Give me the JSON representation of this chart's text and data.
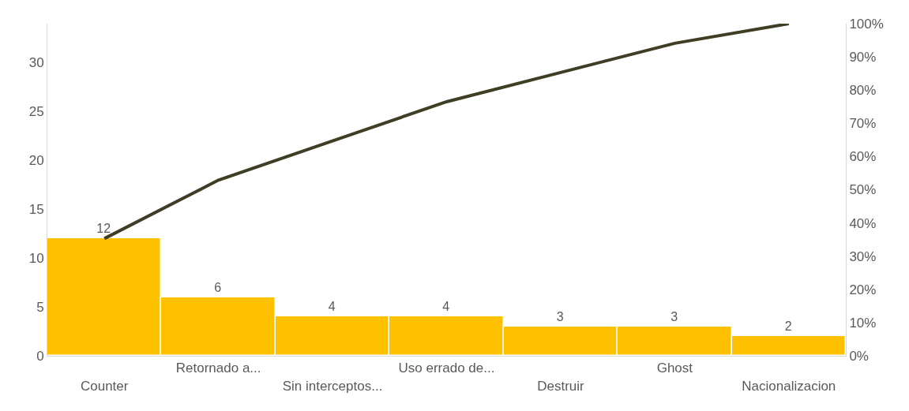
{
  "chart_data": {
    "type": "bar",
    "categories": [
      "Counter",
      "Retornado a...",
      "Sin interceptos...",
      "Uso errado de...",
      "Destruir",
      "Ghost",
      "Nacionalizacion"
    ],
    "series": [
      {
        "color": "#ffc000",
        "values": [
          12,
          6,
          4,
          4,
          3,
          3,
          2
        ],
        "value_labels": [
          "12",
          "6",
          "4",
          "4",
          "3",
          "3",
          "2"
        ]
      },
      {
        "type": "line",
        "axis": "y2",
        "color": "#403d25",
        "values": [
          35.3,
          52.9,
          64.7,
          76.5,
          85.3,
          94.1,
          100
        ]
      }
    ],
    "ylim": [
      0,
      34
    ],
    "yticks": [
      0,
      5,
      10,
      15,
      20,
      25,
      30
    ],
    "y2lim": [
      0,
      100
    ],
    "y2ticks": [
      {
        "value": 0,
        "label": "0%"
      },
      {
        "value": 10,
        "label": "10%"
      },
      {
        "value": 20,
        "label": "20%"
      },
      {
        "value": 30,
        "label": "30%"
      },
      {
        "value": 40,
        "label": "40%"
      },
      {
        "value": 50,
        "label": "50%"
      },
      {
        "value": 60,
        "label": "60%"
      },
      {
        "value": 70,
        "label": "70%"
      },
      {
        "value": 80,
        "label": "80%"
      },
      {
        "value": 90,
        "label": "90%"
      },
      {
        "value": 100,
        "label": "100%"
      }
    ],
    "marker": "none",
    "line_style": "solid"
  }
}
